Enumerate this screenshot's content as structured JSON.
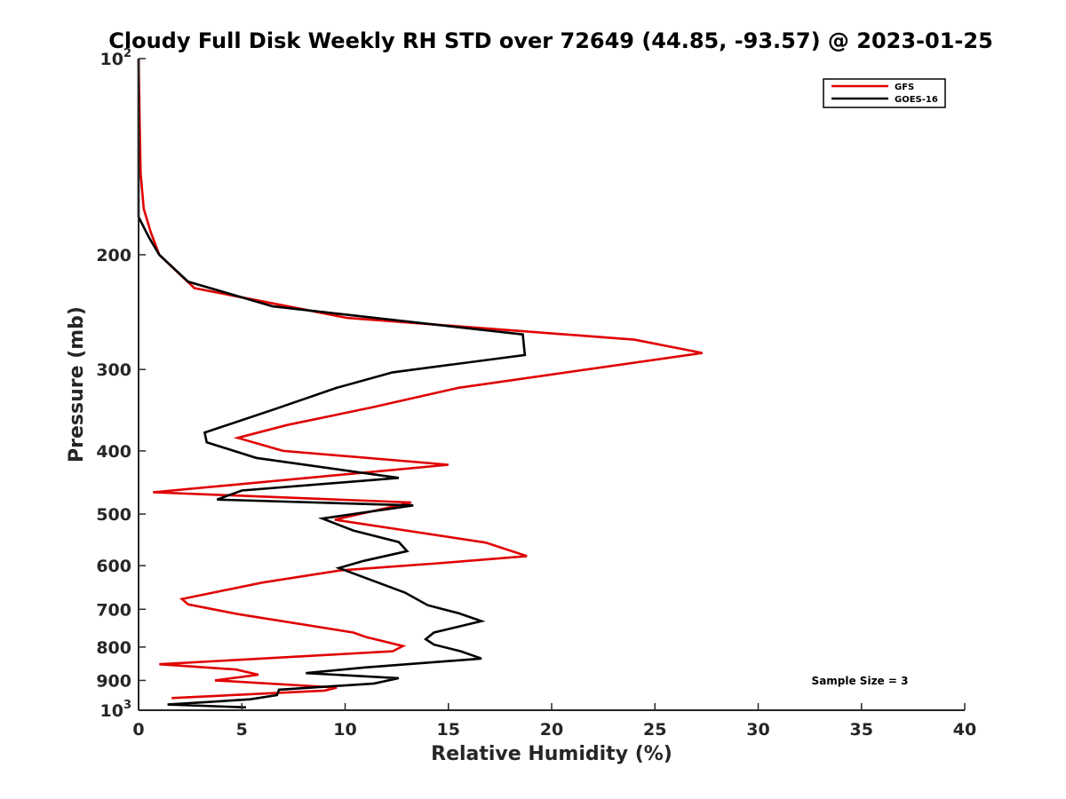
{
  "chart_data": {
    "type": "line",
    "title": "Cloudy Full Disk Weekly RH STD over 72649 (44.85, -93.57) @ 2023-01-25",
    "xlabel": "Relative Humidity (%)",
    "ylabel": "Pressure (mb)",
    "xlim": [
      0,
      40
    ],
    "ylim": [
      100,
      1000
    ],
    "yscale": "log",
    "y_reversed": true,
    "x_ticks": [
      0,
      5,
      10,
      15,
      20,
      25,
      30,
      35,
      40
    ],
    "x_tick_labels": [
      "0",
      "5",
      "10",
      "15",
      "20",
      "25",
      "30",
      "35",
      "40"
    ],
    "y_ticks": [
      {
        "value": 100,
        "base": "10",
        "exp": "2"
      },
      {
        "value": 200,
        "label": "200"
      },
      {
        "value": 300,
        "label": "300"
      },
      {
        "value": 400,
        "label": "400"
      },
      {
        "value": 500,
        "label": "500"
      },
      {
        "value": 600,
        "label": "600"
      },
      {
        "value": 700,
        "label": "700"
      },
      {
        "value": 800,
        "label": "800"
      },
      {
        "value": 900,
        "label": "900"
      },
      {
        "value": 1000,
        "base": "10",
        "exp": "3"
      }
    ],
    "legend_position": "top-right",
    "annotation": "Sample Size = 3",
    "series": [
      {
        "name": "GFS",
        "color": "#e00000",
        "points": [
          [
            0.0,
            100
          ],
          [
            0.05,
            125
          ],
          [
            0.1,
            150
          ],
          [
            0.25,
            170
          ],
          [
            0.6,
            185
          ],
          [
            1.0,
            200
          ],
          [
            2.7,
            225
          ],
          [
            10.1,
            250
          ],
          [
            24.0,
            270
          ],
          [
            27.3,
            283
          ],
          [
            15.5,
            320
          ],
          [
            11.3,
            343
          ],
          [
            7.2,
            365
          ],
          [
            4.8,
            382
          ],
          [
            7.0,
            400
          ],
          [
            15.0,
            420
          ],
          [
            0.7,
            463
          ],
          [
            13.2,
            480
          ],
          [
            9.5,
            510
          ],
          [
            16.8,
            553
          ],
          [
            18.8,
            580
          ],
          [
            14.5,
            595
          ],
          [
            9.8,
            610
          ],
          [
            6.0,
            637
          ],
          [
            2.1,
            675
          ],
          [
            2.4,
            688
          ],
          [
            4.8,
            712
          ],
          [
            10.4,
            760
          ],
          [
            11.0,
            772
          ],
          [
            12.8,
            797
          ],
          [
            12.3,
            812
          ],
          [
            1.0,
            850
          ],
          [
            4.7,
            866
          ],
          [
            5.8,
            882
          ],
          [
            3.7,
            900
          ],
          [
            9.6,
            923
          ],
          [
            9.0,
            933
          ],
          [
            1.6,
            958
          ]
        ]
      },
      {
        "name": "GOES-16",
        "color": "#000000",
        "points": [
          [
            0.0,
            100
          ],
          [
            0.0,
            140
          ],
          [
            0.0,
            175
          ],
          [
            0.5,
            188
          ],
          [
            1.0,
            200
          ],
          [
            2.4,
            220
          ],
          [
            6.5,
            240
          ],
          [
            18.6,
            265
          ],
          [
            18.7,
            285
          ],
          [
            12.3,
            303
          ],
          [
            9.6,
            320
          ],
          [
            6.6,
            345
          ],
          [
            3.2,
            375
          ],
          [
            3.3,
            388
          ],
          [
            5.7,
            410
          ],
          [
            12.6,
            440
          ],
          [
            5.0,
            460
          ],
          [
            3.8,
            475
          ],
          [
            13.3,
            485
          ],
          [
            8.9,
            508
          ],
          [
            10.4,
            530
          ],
          [
            12.6,
            552
          ],
          [
            13.0,
            570
          ],
          [
            10.9,
            590
          ],
          [
            9.7,
            605
          ],
          [
            12.9,
            660
          ],
          [
            14.0,
            690
          ],
          [
            15.5,
            710
          ],
          [
            16.6,
            730
          ],
          [
            14.3,
            760
          ],
          [
            13.9,
            778
          ],
          [
            14.3,
            793
          ],
          [
            15.6,
            812
          ],
          [
            16.6,
            833
          ],
          [
            10.9,
            860
          ],
          [
            8.1,
            877
          ],
          [
            12.6,
            893
          ],
          [
            11.4,
            910
          ],
          [
            6.8,
            930
          ],
          [
            6.7,
            948
          ],
          [
            5.4,
            962
          ],
          [
            1.4,
            980
          ],
          [
            5.2,
            990
          ]
        ]
      }
    ]
  }
}
